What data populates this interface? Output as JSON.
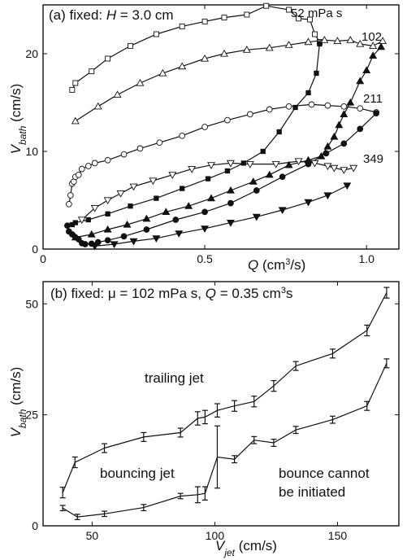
{
  "chart_data": [
    {
      "type": "line",
      "title": "(a) fixed: H = 3.0 cm",
      "title_parts": {
        "prefix": "(a) fixed: ",
        "var": "H",
        "suffix": " = 3.0 cm"
      },
      "xlabel": "Q (cm³/s)",
      "xlabel_parts": {
        "var": "Q",
        "unit_pre": " (cm",
        "unit_sup": "3",
        "unit_post": "/s)"
      },
      "ylabel": "Vbath (cm/s)",
      "ylabel_parts": {
        "var": "V",
        "sub": "bath",
        "unit": " (cm/s)"
      },
      "xlim": [
        0,
        1.1
      ],
      "ylim": [
        0,
        25
      ],
      "xticks": [
        0,
        0.5,
        1.0
      ],
      "xtick_labels": [
        "0",
        "0.5",
        "1.0"
      ],
      "yticks": [
        0,
        10,
        20
      ],
      "ytick_labels": [
        "0",
        "10",
        "20"
      ],
      "grid": false,
      "legend": "none",
      "series": [
        {
          "label": "52 mPa s",
          "branch": "upper",
          "marker": "square-open",
          "x": [
            0.09,
            0.1,
            0.15,
            0.2,
            0.27,
            0.35,
            0.43,
            0.5,
            0.56,
            0.63,
            0.69,
            0.76,
            0.79,
            0.825,
            0.84,
            0.855
          ],
          "y": [
            16.3,
            17.0,
            18.2,
            19.5,
            20.8,
            22.0,
            22.8,
            23.3,
            23.7,
            24.0,
            24.9,
            24.5,
            23.6,
            23.5,
            22.0,
            21.2
          ]
        },
        {
          "label": "52 mPa s",
          "branch": "lower",
          "marker": "square-filled",
          "x": [
            0.09,
            0.1,
            0.14,
            0.2,
            0.27,
            0.35,
            0.43,
            0.51,
            0.57,
            0.62,
            0.68,
            0.73,
            0.78,
            0.82,
            0.845,
            0.855
          ],
          "y": [
            2.5,
            2.7,
            3.0,
            3.6,
            4.4,
            5.2,
            6.2,
            7.2,
            8.0,
            8.8,
            10.0,
            12.0,
            14.5,
            16.0,
            18.0,
            21.0
          ]
        },
        {
          "label": "102",
          "branch": "upper",
          "marker": "triangle-open",
          "x": [
            0.1,
            0.17,
            0.23,
            0.3,
            0.37,
            0.43,
            0.5,
            0.56,
            0.63,
            0.7,
            0.76,
            0.82,
            0.87,
            0.91,
            0.95,
            0.98,
            1.02,
            1.05
          ],
          "y": [
            13.1,
            14.6,
            15.8,
            17.0,
            18.0,
            18.7,
            19.5,
            20.0,
            20.4,
            20.6,
            20.9,
            21.2,
            21.4,
            21.3,
            21.4,
            21.0,
            20.8,
            21.3
          ]
        },
        {
          "label": "102",
          "branch": "lower",
          "marker": "triangle-filled",
          "x": [
            0.1,
            0.15,
            0.2,
            0.26,
            0.32,
            0.38,
            0.45,
            0.52,
            0.58,
            0.65,
            0.7,
            0.76,
            0.82,
            0.86,
            0.88,
            0.9,
            0.915,
            0.93,
            0.95,
            0.98,
            1.0,
            1.02,
            1.045
          ],
          "y": [
            1.2,
            1.5,
            2.0,
            2.5,
            3.1,
            3.8,
            4.4,
            5.2,
            6.0,
            6.9,
            7.6,
            8.6,
            9.1,
            9.5,
            10.5,
            11.5,
            12.7,
            13.8,
            15.0,
            17.2,
            18.3,
            19.8,
            20.7
          ]
        },
        {
          "label": "211",
          "branch": "upper",
          "marker": "circle-open",
          "x": [
            0.08,
            0.085,
            0.09,
            0.095,
            0.1,
            0.11,
            0.12,
            0.14,
            0.16,
            0.2,
            0.25,
            0.3,
            0.36,
            0.43,
            0.5,
            0.57,
            0.64,
            0.7,
            0.76,
            0.83,
            0.88,
            0.93,
            0.98,
            1.03
          ],
          "y": [
            4.6,
            5.5,
            6.7,
            6.9,
            7.4,
            7.6,
            8.2,
            8.5,
            8.8,
            9.1,
            9.7,
            10.3,
            10.9,
            11.6,
            12.5,
            13.2,
            13.8,
            14.3,
            14.6,
            14.8,
            14.7,
            14.6,
            14.4,
            14.0
          ]
        },
        {
          "label": "211",
          "branch": "lower",
          "marker": "circle-filled",
          "x": [
            0.075,
            0.08,
            0.09,
            0.1,
            0.11,
            0.12,
            0.13,
            0.15,
            0.17,
            0.2,
            0.25,
            0.32,
            0.41,
            0.5,
            0.58,
            0.66,
            0.74,
            0.82,
            0.875,
            0.93,
            0.98,
            1.03
          ],
          "y": [
            2.4,
            1.8,
            1.5,
            1.2,
            1.0,
            0.6,
            0.5,
            0.55,
            0.7,
            0.9,
            1.3,
            2.0,
            3.0,
            3.8,
            4.7,
            6.0,
            7.4,
            8.7,
            9.8,
            10.8,
            12.3,
            13.9
          ]
        },
        {
          "label": "349",
          "branch": "upper",
          "marker": "inverted-triangle-open",
          "x": [
            0.12,
            0.16,
            0.2,
            0.24,
            0.28,
            0.34,
            0.4,
            0.46,
            0.52,
            0.58,
            0.64,
            0.72,
            0.79,
            0.84,
            0.88,
            0.9,
            0.93,
            0.96
          ],
          "y": [
            3.0,
            4.2,
            5.0,
            5.7,
            6.4,
            7.0,
            7.6,
            8.2,
            8.6,
            8.8,
            8.7,
            8.7,
            9.0,
            8.8,
            8.5,
            8.3,
            8.1,
            8.3
          ]
        },
        {
          "label": "349",
          "branch": "lower",
          "marker": "inverted-triangle-filled",
          "x": [
            0.16,
            0.22,
            0.28,
            0.35,
            0.42,
            0.5,
            0.58,
            0.66,
            0.74,
            0.82,
            0.88,
            0.94
          ],
          "y": [
            0.3,
            0.5,
            0.8,
            1.1,
            1.6,
            2.1,
            2.7,
            3.3,
            4.0,
            4.8,
            5.5,
            6.5
          ]
        }
      ],
      "annotations": [
        "52 mPa s",
        "102",
        "211",
        "349"
      ]
    },
    {
      "type": "line",
      "title": "(b) fixed: μ = 102 mPa s, Q = 0.35 cm³s",
      "title_parts": {
        "prefix": "(b) fixed: μ = 102 mPa s, ",
        "var": "Q",
        "mid": " = 0.35 cm",
        "sup": "3",
        "suffix": "s"
      },
      "xlabel": "Vjet (cm/s)",
      "xlabel_parts": {
        "var": "V",
        "sub": "jet",
        "unit": " (cm/s)"
      },
      "ylabel": "Vbath (cm/s)",
      "ylabel_parts": {
        "var": "V",
        "sub": "bath",
        "unit": " (cm/s)"
      },
      "xlim": [
        30,
        175
      ],
      "ylim": [
        0,
        55
      ],
      "xticks": [
        50,
        100,
        150
      ],
      "xtick_labels": [
        "50",
        "100",
        "150"
      ],
      "yticks": [
        0,
        25,
        50
      ],
      "ytick_labels": [
        "0",
        "25",
        "50"
      ],
      "grid": false,
      "legend": "none",
      "series": [
        {
          "branch": "upper",
          "x": [
            38,
            43,
            55,
            71,
            86,
            93,
            96,
            101,
            108,
            116,
            124,
            133,
            148,
            162,
            170
          ],
          "y": [
            7.5,
            14.3,
            17.5,
            20.0,
            21.0,
            24.2,
            24.5,
            26.0,
            27.0,
            28.0,
            31.5,
            36.0,
            38.8,
            44.0,
            52.5
          ],
          "err": [
            1.2,
            1.2,
            1.0,
            1.0,
            1.0,
            1.5,
            1.5,
            1.5,
            1.2,
            1.2,
            1.2,
            1.0,
            1.0,
            1.2,
            1.2
          ]
        },
        {
          "branch": "lower",
          "x": [
            38,
            44,
            55,
            71,
            86,
            93,
            96,
            101,
            108,
            116,
            124,
            133,
            148,
            162,
            170
          ],
          "y": [
            4.0,
            2.0,
            2.7,
            4.1,
            6.7,
            7.0,
            7.3,
            15.5,
            15.0,
            19.3,
            18.7,
            21.6,
            23.9,
            27.0,
            36.6
          ],
          "err": [
            0.6,
            0.6,
            0.6,
            0.7,
            0.6,
            1.8,
            1.5,
            7.0,
            0.8,
            0.8,
            0.8,
            0.8,
            0.8,
            1.0,
            1.0
          ]
        }
      ],
      "region_labels": [
        "trailing jet",
        "bouncing jet",
        "bounce cannot",
        "be initiated"
      ]
    }
  ]
}
